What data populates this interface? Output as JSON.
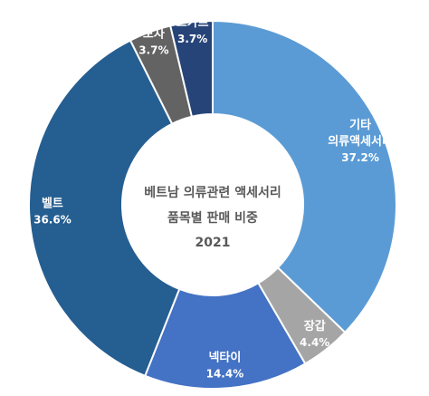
{
  "chart_data": {
    "type": "pie",
    "variant": "donut",
    "title_lines": [
      "베트남 의류관련 액세서리",
      "품목별 판매 비중",
      "2021"
    ],
    "start": "12 o'clock",
    "direction": "clockwise",
    "unit": "%",
    "slices": [
      {
        "label_lines": [
          "기타",
          "의류액세서리"
        ],
        "value": 37.2,
        "value_label": "37.2%",
        "color": "#5b9bd5"
      },
      {
        "label_lines": [
          "장갑"
        ],
        "value": 4.4,
        "value_label": "4.4%",
        "color": "#a5a5a5"
      },
      {
        "label_lines": [
          "넥타이"
        ],
        "value": 14.4,
        "value_label": "14.4%",
        "color": "#4472c4"
      },
      {
        "label_lines": [
          "벨트"
        ],
        "value": 36.6,
        "value_label": "36.6%",
        "color": "#255e91"
      },
      {
        "label_lines": [
          "모자"
        ],
        "value": 3.7,
        "value_label": "3.7%",
        "color": "#636363"
      },
      {
        "label_lines": [
          "스카프"
        ],
        "value": 3.7,
        "value_label": "3.7%",
        "color": "#264478"
      }
    ]
  }
}
